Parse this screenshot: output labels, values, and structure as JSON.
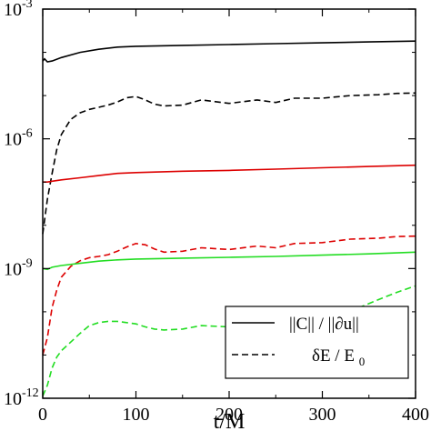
{
  "chart_data": {
    "type": "line",
    "xlabel": "t/M",
    "ylabel": "",
    "xlim": [
      0,
      400
    ],
    "ylim_exponent": [
      -12,
      -3
    ],
    "yscale": "log",
    "x_ticks": [
      0,
      100,
      200,
      300,
      400
    ],
    "x_tick_labels": [
      "0",
      "100",
      "200",
      "300",
      "400"
    ],
    "y_ticks": [
      {
        "base": "10",
        "exp": "-3",
        "value": -3
      },
      {
        "base": "10",
        "exp": "-6",
        "value": -6
      },
      {
        "base": "10",
        "exp": "-9",
        "value": -9
      },
      {
        "base": "10",
        "exp": "-12",
        "value": -12
      }
    ],
    "legend": {
      "position": "bottom-right",
      "entries": [
        {
          "label": "||C|| / ||∂u||",
          "style": "solid"
        },
        {
          "label_main": "δE / E",
          "label_sub": "0",
          "style": "dashed"
        }
      ]
    },
    "series": [
      {
        "color": "#000000",
        "style": "solid",
        "x": [
          0,
          2,
          5,
          10,
          20,
          40,
          60,
          80,
          100,
          150,
          200,
          250,
          300,
          350,
          400
        ],
        "y_log10": [
          -4.2,
          -4.15,
          -4.22,
          -4.2,
          -4.12,
          -4.0,
          -3.93,
          -3.88,
          -3.86,
          -3.84,
          -3.82,
          -3.8,
          -3.78,
          -3.76,
          -3.74
        ]
      },
      {
        "color": "#000000",
        "style": "dashed",
        "x": [
          0,
          5,
          10,
          15,
          20,
          30,
          40,
          50,
          60,
          70,
          80,
          90,
          100,
          110,
          120,
          130,
          150,
          170,
          200,
          230,
          250,
          270,
          300,
          330,
          360,
          380,
          400
        ],
        "y_log10": [
          -8.2,
          -7.4,
          -6.8,
          -6.25,
          -5.9,
          -5.55,
          -5.4,
          -5.32,
          -5.27,
          -5.22,
          -5.15,
          -5.05,
          -5.02,
          -5.1,
          -5.2,
          -5.24,
          -5.22,
          -5.1,
          -5.18,
          -5.1,
          -5.16,
          -5.06,
          -5.06,
          -5.0,
          -4.98,
          -4.95,
          -4.94
        ]
      },
      {
        "color": "#dd0000",
        "style": "solid",
        "x": [
          0,
          5,
          10,
          20,
          40,
          60,
          80,
          100,
          150,
          200,
          250,
          300,
          350,
          400
        ],
        "y_log10": [
          -7.0,
          -7.0,
          -6.98,
          -6.95,
          -6.9,
          -6.85,
          -6.8,
          -6.78,
          -6.75,
          -6.73,
          -6.7,
          -6.67,
          -6.64,
          -6.61
        ]
      },
      {
        "color": "#dd0000",
        "style": "dashed",
        "x": [
          0,
          5,
          10,
          15,
          20,
          30,
          40,
          50,
          60,
          70,
          80,
          90,
          100,
          110,
          120,
          130,
          150,
          170,
          200,
          230,
          250,
          270,
          300,
          330,
          360,
          380,
          400
        ],
        "y_log10": [
          -11.0,
          -10.6,
          -9.9,
          -9.5,
          -9.2,
          -8.95,
          -8.82,
          -8.75,
          -8.72,
          -8.68,
          -8.6,
          -8.5,
          -8.42,
          -8.45,
          -8.55,
          -8.62,
          -8.6,
          -8.52,
          -8.56,
          -8.48,
          -8.52,
          -8.42,
          -8.4,
          -8.32,
          -8.3,
          -8.26,
          -8.25
        ]
      },
      {
        "color": "#22dd22",
        "style": "solid",
        "x": [
          0,
          5,
          10,
          20,
          40,
          60,
          80,
          100,
          150,
          200,
          250,
          300,
          350,
          400
        ],
        "y_log10": [
          -9.0,
          -9.02,
          -8.97,
          -8.93,
          -8.88,
          -8.83,
          -8.8,
          -8.78,
          -8.76,
          -8.74,
          -8.72,
          -8.69,
          -8.66,
          -8.62
        ]
      },
      {
        "color": "#22dd22",
        "style": "dashed",
        "x": [
          0,
          5,
          10,
          15,
          20,
          30,
          40,
          50,
          60,
          70,
          80,
          90,
          100,
          110,
          120,
          130,
          150,
          170,
          200,
          230,
          250,
          270,
          300,
          320,
          340,
          360,
          380,
          400
        ],
        "y_log10": [
          -11.95,
          -11.7,
          -11.3,
          -11.05,
          -10.9,
          -10.7,
          -10.5,
          -10.32,
          -10.25,
          -10.22,
          -10.22,
          -10.25,
          -10.28,
          -10.35,
          -10.4,
          -10.42,
          -10.4,
          -10.32,
          -10.35,
          -10.28,
          -10.3,
          -10.2,
          -10.15,
          -10.02,
          -9.9,
          -9.72,
          -9.55,
          -9.4
        ]
      }
    ]
  }
}
